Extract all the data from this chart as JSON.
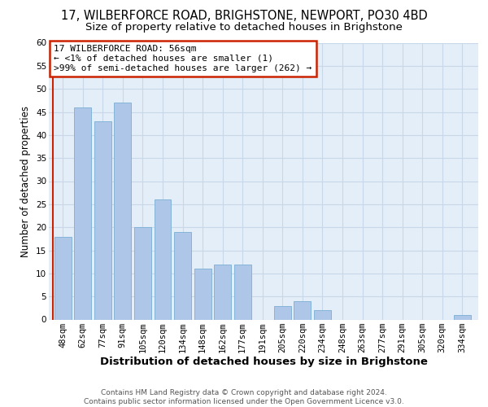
{
  "title": "17, WILBERFORCE ROAD, BRIGHSTONE, NEWPORT, PO30 4BD",
  "subtitle": "Size of property relative to detached houses in Brighstone",
  "xlabel": "Distribution of detached houses by size in Brighstone",
  "ylabel": "Number of detached properties",
  "footer_lines": [
    "Contains HM Land Registry data © Crown copyright and database right 2024.",
    "Contains public sector information licensed under the Open Government Licence v3.0."
  ],
  "bin_labels": [
    "48sqm",
    "62sqm",
    "77sqm",
    "91sqm",
    "105sqm",
    "120sqm",
    "134sqm",
    "148sqm",
    "162sqm",
    "177sqm",
    "191sqm",
    "205sqm",
    "220sqm",
    "234sqm",
    "248sqm",
    "263sqm",
    "277sqm",
    "291sqm",
    "305sqm",
    "320sqm",
    "334sqm"
  ],
  "bar_heights": [
    18,
    46,
    43,
    47,
    20,
    26,
    19,
    11,
    12,
    12,
    0,
    3,
    4,
    2,
    0,
    0,
    0,
    0,
    0,
    0,
    1
  ],
  "bar_color": "#aec6e8",
  "bar_edge_color": "#7aafd4",
  "annotation_box_text": "17 WILBERFORCE ROAD: 56sqm\n← <1% of detached houses are smaller (1)\n>99% of semi-detached houses are larger (262) →",
  "annotation_box_edge_color": "#cc2200",
  "vline_color": "#cc2200",
  "ylim": [
    0,
    60
  ],
  "yticks": [
    0,
    5,
    10,
    15,
    20,
    25,
    30,
    35,
    40,
    45,
    50,
    55,
    60
  ],
  "grid_color": "#c8d8e8",
  "background_color": "#e4eef8",
  "title_fontsize": 10.5,
  "subtitle_fontsize": 9.5,
  "xlabel_fontsize": 9.5,
  "ylabel_fontsize": 8.5,
  "tick_fontsize": 7.5,
  "annotation_fontsize": 8.0,
  "footer_fontsize": 6.5
}
